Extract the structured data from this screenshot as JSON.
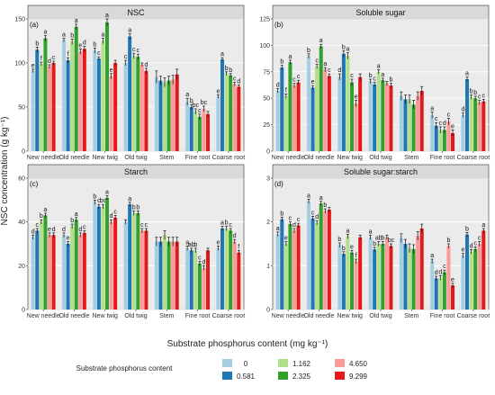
{
  "figure": {
    "ylabel": "NSC concentration (g kg⁻¹)",
    "xlabel": "Substrate phosphorus content (mg kg⁻¹)",
    "legend_title": "Substrate phosphorus content",
    "legend": [
      {
        "label": "0",
        "color": "#a6cee3"
      },
      {
        "label": "0.581",
        "color": "#1f78b4"
      },
      {
        "label": "1.162",
        "color": "#b2df8a"
      },
      {
        "label": "2.325",
        "color": "#33a02c"
      },
      {
        "label": "4.650",
        "color": "#fb9a99"
      },
      {
        "label": "9.299",
        "color": "#e31a1c"
      }
    ],
    "colors": [
      "#a6cee3",
      "#1f78b4",
      "#b2df8a",
      "#33a02c",
      "#fb9a99",
      "#e31a1c"
    ],
    "categories": [
      "New needle",
      "Old needle",
      "New twig",
      "Old twig",
      "Stem",
      "Fine root",
      "Coarse root"
    ],
    "panel_bg": "#ebebeb",
    "strip_bg": "#d9d9d9"
  },
  "chart_data": [
    {
      "type": "bar",
      "title": "NSC",
      "panel_label": "(a)",
      "ylim": [
        0,
        150
      ],
      "yticks": [
        0,
        50,
        100,
        150
      ],
      "categories": [
        "New needle",
        "Old needle",
        "New twig",
        "Old twig",
        "Stem",
        "Fine root",
        "Coarse root"
      ],
      "series": [
        {
          "name": "0",
          "values": [
            91,
            126,
            114,
            100,
            84,
            56,
            62
          ],
          "errors": [
            2,
            2,
            3,
            3,
            7,
            4,
            2
          ],
          "letters": [
            "e",
            "a",
            "b",
            "c",
            "",
            "a",
            "e"
          ]
        },
        {
          "name": "0.581",
          "values": [
            115,
            103,
            105,
            130,
            80,
            50,
            104
          ],
          "errors": [
            3,
            3,
            2,
            3,
            5,
            3,
            2
          ],
          "letters": [
            "b",
            "f",
            "c",
            "a",
            "",
            "b",
            "a"
          ]
        },
        {
          "name": "1.162",
          "values": [
            99,
            124,
            125,
            108,
            78,
            45,
            88
          ],
          "errors": [
            2,
            3,
            3,
            3,
            5,
            3,
            2
          ],
          "letters": [
            "f",
            "b",
            "a",
            "c",
            "",
            "bc",
            "b"
          ]
        },
        {
          "name": "2.325",
          "values": [
            128,
            141,
            146,
            107,
            80,
            39,
            86
          ],
          "errors": [
            3,
            3,
            4,
            3,
            5,
            3,
            2
          ],
          "letters": [
            "a",
            "a",
            "a",
            "c",
            "",
            "c",
            "b"
          ]
        },
        {
          "name": "4.650",
          "values": [
            96,
            113,
            85,
            98,
            81,
            48,
            76
          ],
          "errors": [
            2,
            3,
            3,
            2,
            5,
            3,
            2
          ],
          "letters": [
            "d",
            "e",
            "e",
            "",
            "",
            "bc",
            "c"
          ]
        },
        {
          "name": "9.299",
          "values": [
            100,
            116,
            100,
            91,
            87,
            42,
            73
          ],
          "errors": [
            2,
            3,
            3,
            3,
            6,
            3,
            2
          ],
          "letters": [
            "c",
            "d",
            "",
            "d",
            "",
            "",
            "d"
          ]
        }
      ]
    },
    {
      "type": "bar",
      "title": "Soluble sugar",
      "panel_label": "(b)",
      "ylim": [
        0,
        125
      ],
      "yticks": [
        0,
        25,
        50,
        75,
        100,
        125
      ],
      "categories": [
        "New needle",
        "Old needle",
        "New twig",
        "Old twig",
        "Stem",
        "Fine root",
        "Coarse root"
      ],
      "series": [
        {
          "name": "0",
          "values": [
            57,
            90,
            70,
            66,
            52,
            34,
            34
          ],
          "errors": [
            2,
            2,
            3,
            2,
            4,
            3,
            2
          ],
          "letters": [
            "d",
            "b",
            "d",
            "b",
            "",
            "a",
            "d"
          ]
        },
        {
          "name": "0.581",
          "values": [
            79,
            60,
            92,
            63,
            49,
            24,
            68
          ],
          "errors": [
            2,
            2,
            3,
            2,
            4,
            3,
            2
          ],
          "letters": [
            "b",
            "e",
            "b",
            "c",
            "",
            "c",
            "a"
          ]
        },
        {
          "name": "1.162",
          "values": [
            52,
            80,
            90,
            75,
            49,
            20,
            51
          ],
          "errors": [
            2,
            2,
            3,
            2,
            4,
            3,
            2
          ],
          "letters": [
            "f",
            "c",
            "a",
            "a",
            "",
            "c",
            "b"
          ]
        },
        {
          "name": "2.325",
          "values": [
            84,
            99,
            65,
            67,
            44,
            20,
            50
          ],
          "errors": [
            2,
            2,
            3,
            2,
            4,
            3,
            2
          ],
          "letters": [
            "a",
            "a",
            "c",
            "a",
            "",
            "d",
            "b"
          ]
        },
        {
          "name": "4.650",
          "values": [
            62,
            77,
            45,
            64,
            52,
            28,
            46
          ],
          "errors": [
            2,
            2,
            3,
            2,
            4,
            3,
            2
          ],
          "letters": [
            "c",
            "a",
            "e",
            "",
            "",
            "c",
            "c"
          ]
        },
        {
          "name": "9.299",
          "values": [
            65,
            71,
            70,
            62,
            57,
            17,
            47
          ],
          "errors": [
            2,
            2,
            3,
            2,
            4,
            3,
            2
          ],
          "letters": [
            "c",
            "c",
            "",
            "b",
            "",
            "e",
            "c"
          ]
        }
      ]
    },
    {
      "type": "bar",
      "title": "Starch",
      "panel_label": "(c)",
      "ylim": [
        0,
        60
      ],
      "yticks": [
        0,
        20,
        40,
        60
      ],
      "categories": [
        "New needle",
        "Old needle",
        "New twig",
        "Old twig",
        "Stem",
        "Fine root",
        "Coarse root"
      ],
      "series": [
        {
          "name": "0",
          "values": [
            33,
            34,
            49,
            40,
            31,
            28,
            28
          ],
          "errors": [
            1,
            1,
            1,
            1,
            2,
            1,
            1
          ],
          "letters": [
            "d",
            "d",
            "b",
            "",
            "",
            "a",
            "e"
          ]
        },
        {
          "name": "0.581",
          "values": [
            36,
            30,
            47,
            48,
            31,
            27,
            37
          ],
          "errors": [
            1,
            1,
            1,
            1,
            2,
            1,
            1
          ],
          "letters": [
            "c",
            "e",
            "c",
            "a",
            "",
            "ab",
            "a"
          ]
        },
        {
          "name": "1.162",
          "values": [
            40,
            38,
            47,
            44,
            34,
            27,
            37
          ],
          "errors": [
            1,
            1,
            1,
            1,
            2,
            1,
            1
          ],
          "letters": [
            "b",
            "b",
            "bc",
            "b",
            "",
            "b",
            "b"
          ]
        },
        {
          "name": "2.325",
          "values": [
            43,
            41,
            51,
            44,
            31,
            21,
            36
          ],
          "errors": [
            1,
            1,
            1,
            1,
            2,
            1,
            1
          ],
          "letters": [
            "a",
            "a",
            "a",
            "b",
            "",
            "c",
            "c"
          ]
        },
        {
          "name": "4.650",
          "values": [
            34,
            34,
            40,
            36,
            31,
            19,
            31
          ],
          "errors": [
            1,
            1,
            1,
            1,
            2,
            1,
            1
          ],
          "letters": [
            "e",
            "d",
            "d",
            "c",
            "",
            "d",
            "d"
          ]
        },
        {
          "name": "9.299",
          "values": [
            34,
            35,
            42,
            36,
            31,
            27,
            26
          ],
          "errors": [
            1,
            1,
            1,
            1,
            2,
            1,
            1
          ],
          "letters": [
            "d",
            "c",
            "c",
            "c",
            "",
            "",
            "f"
          ]
        }
      ]
    },
    {
      "type": "bar",
      "title": "Soluble sugar:starch",
      "panel_label": "(d)",
      "ylim": [
        0,
        3
      ],
      "yticks": [
        0,
        1,
        2,
        3
      ],
      "categories": [
        "New needle",
        "Old needle",
        "New twig",
        "Old twig",
        "Stem",
        "Fine root",
        "Coarse root"
      ],
      "series": [
        {
          "name": "0",
          "values": [
            1.72,
            2.47,
            1.47,
            1.65,
            1.63,
            1.1,
            1.23
          ],
          "errors": [
            0.05,
            0.05,
            0.05,
            0.05,
            0.1,
            0.05,
            0.05
          ],
          "letters": [
            "a",
            "a",
            "b",
            "a",
            "",
            "a",
            "e"
          ]
        },
        {
          "name": "0.581",
          "values": [
            2.06,
            2.08,
            1.27,
            1.37,
            1.5,
            0.71,
            1.71
          ],
          "errors": [
            0.05,
            0.05,
            0.05,
            0.05,
            0.1,
            0.05,
            0.05
          ],
          "letters": [
            "b",
            "c",
            "b",
            "b",
            "",
            "d",
            "b"
          ]
        },
        {
          "name": "1.162",
          "values": [
            1.5,
            1.98,
            1.67,
            1.5,
            1.4,
            0.72,
            1.32
          ],
          "errors": [
            0.05,
            0.05,
            0.05,
            0.05,
            0.1,
            0.05,
            0.05
          ],
          "letters": [
            "e",
            "d",
            "a",
            "ab",
            "",
            "d",
            "d"
          ]
        },
        {
          "name": "2.325",
          "values": [
            1.95,
            2.42,
            1.3,
            1.5,
            1.38,
            0.85,
            1.38
          ],
          "errors": [
            0.05,
            0.05,
            0.05,
            0.05,
            0.1,
            0.05,
            0.05
          ],
          "letters": [
            "c",
            "a",
            "e",
            "b",
            "",
            "c",
            "c"
          ]
        },
        {
          "name": "4.650",
          "values": [
            1.8,
            2.25,
            1.1,
            1.65,
            1.68,
            1.45,
            1.5
          ],
          "errors": [
            0.05,
            0.05,
            0.05,
            0.05,
            0.1,
            0.05,
            0.05
          ],
          "letters": [
            "d",
            "b",
            "f",
            "",
            "",
            "b",
            "c"
          ]
        },
        {
          "name": "9.299",
          "values": [
            1.92,
            2.28,
            1.65,
            1.45,
            1.85,
            0.55,
            1.8
          ],
          "errors": [
            0.05,
            0.05,
            0.05,
            0.05,
            0.1,
            0.05,
            0.05
          ],
          "letters": [
            "c",
            "",
            "",
            "bc",
            "",
            "e",
            "a"
          ]
        }
      ]
    }
  ]
}
